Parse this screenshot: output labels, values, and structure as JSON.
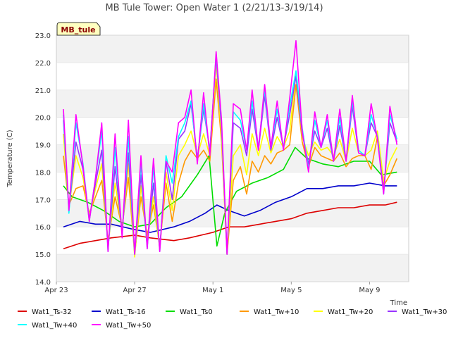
{
  "chart_data": {
    "type": "line",
    "title": "MB Tule Tower: Open Water 1 (2/21/13-3/19/14)",
    "xlabel": "Time",
    "ylabel": "Temperature (C)",
    "badge": "MB_tule",
    "ylim": [
      14.0,
      23.0
    ],
    "xlim": [
      0,
      45
    ],
    "y_ticks": [
      "14.0",
      "15.0",
      "16.0",
      "17.0",
      "18.0",
      "19.0",
      "20.0",
      "21.0",
      "22.0",
      "23.0"
    ],
    "x_ticks": [
      {
        "label": "Apr 23",
        "x": 0
      },
      {
        "label": "Apr 27",
        "x": 10
      },
      {
        "label": "May 1",
        "x": 20
      },
      {
        "label": "May 5",
        "x": 30
      },
      {
        "label": "May 9",
        "x": 40
      }
    ],
    "grid_bands": true,
    "legend_position": "bottom",
    "series": [
      {
        "name": "Wat1_Ts-32",
        "color": "#dd0000",
        "x": [
          0.9,
          3,
          5,
          7,
          10,
          12,
          15,
          17,
          20,
          22,
          24,
          26,
          28,
          30,
          32,
          34,
          36,
          38,
          40,
          42,
          43.5
        ],
        "values": [
          15.2,
          15.4,
          15.5,
          15.6,
          15.7,
          15.6,
          15.5,
          15.6,
          15.8,
          16.0,
          16.0,
          16.1,
          16.2,
          16.3,
          16.5,
          16.6,
          16.7,
          16.7,
          16.8,
          16.8,
          16.9
        ]
      },
      {
        "name": "Wat1_Ts-16",
        "color": "#0000cc",
        "x": [
          0.9,
          3,
          5,
          7,
          10,
          12,
          15,
          17,
          19,
          20.5,
          22,
          24,
          26,
          28,
          30,
          32,
          34,
          36,
          38,
          40,
          42,
          43.5
        ],
        "values": [
          16.0,
          16.2,
          16.1,
          16.1,
          15.9,
          15.8,
          16.0,
          16.2,
          16.5,
          16.8,
          16.6,
          16.4,
          16.6,
          16.9,
          17.1,
          17.4,
          17.4,
          17.5,
          17.5,
          17.6,
          17.5,
          17.5
        ]
      },
      {
        "name": "Wat1_Ts0",
        "color": "#00dd00",
        "x": [
          0.9,
          2,
          4,
          6,
          8,
          10,
          12,
          14,
          16,
          18,
          19.5,
          20.5,
          21.5,
          23,
          25,
          27,
          29,
          30.5,
          32,
          34,
          36,
          38,
          40,
          41.5,
          43.5
        ],
        "values": [
          17.5,
          17.1,
          16.9,
          16.6,
          16.2,
          16.0,
          16.1,
          16.7,
          17.1,
          17.9,
          18.6,
          15.3,
          16.5,
          17.3,
          17.6,
          17.8,
          18.1,
          18.9,
          18.5,
          18.3,
          18.2,
          18.4,
          18.4,
          17.9,
          18.0
        ]
      },
      {
        "name": "Wat1_Tw+10",
        "color": "#ff9900",
        "x": [
          0.9,
          1.6,
          2.5,
          3.4,
          4.2,
          5.0,
          5.8,
          6.6,
          7.5,
          8.4,
          9.2,
          10.0,
          10.8,
          11.6,
          12.4,
          13.2,
          14.0,
          14.8,
          15.6,
          16.4,
          17.2,
          18.0,
          18.8,
          19.6,
          20.4,
          21.1,
          21.8,
          22.6,
          23.5,
          24.3,
          25.0,
          25.8,
          26.6,
          27.4,
          28.2,
          29.0,
          29.8,
          30.6,
          31.4,
          32.2,
          33.0,
          33.8,
          34.6,
          35.4,
          36.2,
          37.0,
          37.8,
          38.6,
          39.4,
          40.2,
          41.0,
          41.8,
          42.6,
          43.5
        ],
        "values": [
          18.6,
          16.8,
          17.4,
          17.5,
          16.5,
          17.1,
          17.7,
          15.5,
          17.1,
          16.0,
          17.8,
          15.0,
          17.1,
          15.7,
          16.8,
          15.3,
          17.6,
          16.2,
          17.6,
          18.4,
          18.8,
          18.5,
          18.8,
          18.4,
          21.4,
          19.1,
          15.0,
          17.7,
          18.2,
          17.2,
          18.4,
          18.0,
          18.6,
          18.3,
          18.7,
          18.8,
          19.0,
          21.2,
          19.1,
          18.2,
          18.9,
          18.6,
          18.5,
          18.4,
          18.7,
          18.2,
          18.5,
          18.6,
          18.6,
          18.1,
          19.3,
          17.5,
          17.9,
          18.5
        ]
      },
      {
        "name": "Wat1_Tw+20",
        "color": "#ffff00",
        "x": [
          0.9,
          1.6,
          2.5,
          3.4,
          4.2,
          5.0,
          5.8,
          6.6,
          7.5,
          8.4,
          9.2,
          10.0,
          10.8,
          11.6,
          12.4,
          13.2,
          14.0,
          14.8,
          15.6,
          16.4,
          17.2,
          18.0,
          18.8,
          19.6,
          20.4,
          21.1,
          21.8,
          22.6,
          23.5,
          24.3,
          25.0,
          25.8,
          26.6,
          27.4,
          28.2,
          29.0,
          29.8,
          30.6,
          31.4,
          32.2,
          33.0,
          33.8,
          34.6,
          35.4,
          36.2,
          37.0,
          37.8,
          38.6,
          39.4,
          40.2,
          41.0,
          41.8,
          42.6,
          43.5
        ],
        "values": [
          19.4,
          16.7,
          18.6,
          17.8,
          16.4,
          17.4,
          18.3,
          15.3,
          17.6,
          15.9,
          18.3,
          14.9,
          17.5,
          15.5,
          17.1,
          15.2,
          18.0,
          16.6,
          18.6,
          19.0,
          19.5,
          18.6,
          19.4,
          18.6,
          22.0,
          19.3,
          15.0,
          18.6,
          19.0,
          17.9,
          19.4,
          18.6,
          19.6,
          18.7,
          19.3,
          18.9,
          19.5,
          21.6,
          19.3,
          18.6,
          19.1,
          18.8,
          18.9,
          18.6,
          19.2,
          18.4,
          19.6,
          18.7,
          18.6,
          18.8,
          19.5,
          17.7,
          18.4,
          18.9
        ]
      },
      {
        "name": "Wat1_Tw+30",
        "color": "#9933ff",
        "x": [
          0.9,
          1.6,
          2.5,
          3.4,
          4.2,
          5.0,
          5.8,
          6.6,
          7.5,
          8.4,
          9.2,
          10.0,
          10.8,
          11.6,
          12.4,
          13.2,
          14.0,
          14.8,
          15.6,
          16.4,
          17.2,
          18.0,
          18.8,
          19.6,
          20.4,
          21.1,
          21.8,
          22.6,
          23.5,
          24.3,
          25.0,
          25.8,
          26.6,
          27.4,
          28.2,
          29.0,
          29.8,
          30.6,
          31.4,
          32.2,
          33.0,
          33.8,
          34.6,
          35.4,
          36.2,
          37.0,
          37.8,
          38.6,
          39.4,
          40.2,
          41.0,
          41.8,
          42.6,
          43.5
        ],
        "values": [
          19.9,
          16.6,
          19.1,
          18.1,
          16.3,
          17.6,
          18.8,
          15.2,
          18.2,
          15.8,
          18.7,
          15.0,
          17.9,
          15.3,
          17.6,
          15.2,
          18.4,
          17.0,
          19.2,
          19.5,
          20.5,
          18.5,
          20.3,
          18.8,
          22.2,
          19.6,
          15.0,
          19.8,
          19.6,
          18.6,
          20.3,
          18.8,
          20.8,
          18.8,
          20.0,
          18.9,
          20.1,
          21.5,
          19.4,
          18.3,
          19.5,
          18.9,
          19.6,
          18.4,
          19.7,
          18.4,
          20.4,
          18.7,
          18.6,
          19.8,
          19.3,
          17.3,
          19.8,
          19.1
        ]
      },
      {
        "name": "Wat1_Tw+40",
        "color": "#00ffff",
        "x": [
          0.9,
          1.6,
          2.5,
          3.4,
          4.2,
          5.0,
          5.8,
          6.6,
          7.5,
          8.4,
          9.2,
          10.0,
          10.8,
          11.6,
          12.4,
          13.2,
          14.0,
          14.8,
          15.6,
          16.4,
          17.2,
          18.0,
          18.8,
          19.6,
          20.4,
          21.1,
          21.8,
          22.6,
          23.5,
          24.3,
          25.0,
          25.8,
          26.6,
          27.4,
          28.2,
          29.0,
          29.8,
          30.6,
          31.4,
          32.2,
          33.0,
          33.8,
          34.6,
          35.4,
          36.2,
          37.0,
          37.8,
          38.6,
          39.4,
          40.2,
          41.0,
          41.8,
          42.6,
          43.5
        ],
        "values": [
          20.1,
          16.5,
          19.8,
          18.3,
          16.2,
          17.8,
          19.5,
          15.1,
          18.9,
          15.7,
          19.3,
          15.0,
          18.3,
          15.2,
          18.2,
          15.1,
          18.6,
          17.6,
          19.3,
          19.8,
          20.6,
          18.4,
          20.5,
          18.7,
          22.3,
          19.8,
          15.0,
          20.2,
          19.9,
          18.8,
          20.6,
          18.9,
          21.0,
          18.9,
          20.3,
          18.9,
          20.4,
          21.7,
          19.6,
          18.1,
          19.9,
          18.9,
          19.9,
          18.4,
          20.0,
          18.4,
          20.6,
          18.8,
          18.6,
          20.1,
          19.3,
          17.2,
          20.1,
          19.2
        ]
      },
      {
        "name": "Wat1_Tw+50",
        "color": "#ff00ff",
        "x": [
          0.9,
          1.6,
          2.5,
          3.4,
          4.2,
          5.0,
          5.8,
          6.6,
          7.5,
          8.4,
          9.2,
          10.0,
          10.8,
          11.6,
          12.4,
          13.2,
          14.0,
          14.8,
          15.6,
          16.4,
          17.2,
          18.0,
          18.8,
          19.6,
          20.4,
          21.1,
          21.8,
          22.6,
          23.5,
          24.3,
          25.0,
          25.8,
          26.6,
          27.4,
          28.2,
          29.0,
          29.8,
          30.6,
          31.4,
          32.2,
          33.0,
          33.8,
          34.6,
          35.4,
          36.2,
          37.0,
          37.8,
          38.6,
          39.4,
          40.2,
          41.0,
          41.8,
          42.6,
          43.5
        ],
        "values": [
          20.3,
          16.6,
          20.1,
          18.2,
          16.2,
          17.8,
          19.8,
          15.1,
          19.4,
          15.6,
          19.9,
          15.0,
          18.6,
          15.2,
          18.5,
          15.1,
          18.4,
          18.0,
          19.8,
          20.0,
          21.0,
          18.3,
          20.9,
          18.6,
          22.4,
          19.9,
          15.0,
          20.5,
          20.3,
          18.8,
          21.0,
          18.8,
          21.2,
          18.9,
          20.6,
          18.8,
          20.7,
          22.8,
          19.5,
          18.0,
          20.2,
          18.9,
          20.1,
          18.4,
          20.3,
          18.4,
          20.8,
          18.7,
          18.6,
          20.5,
          19.2,
          17.2,
          20.4,
          19.0
        ]
      }
    ]
  }
}
